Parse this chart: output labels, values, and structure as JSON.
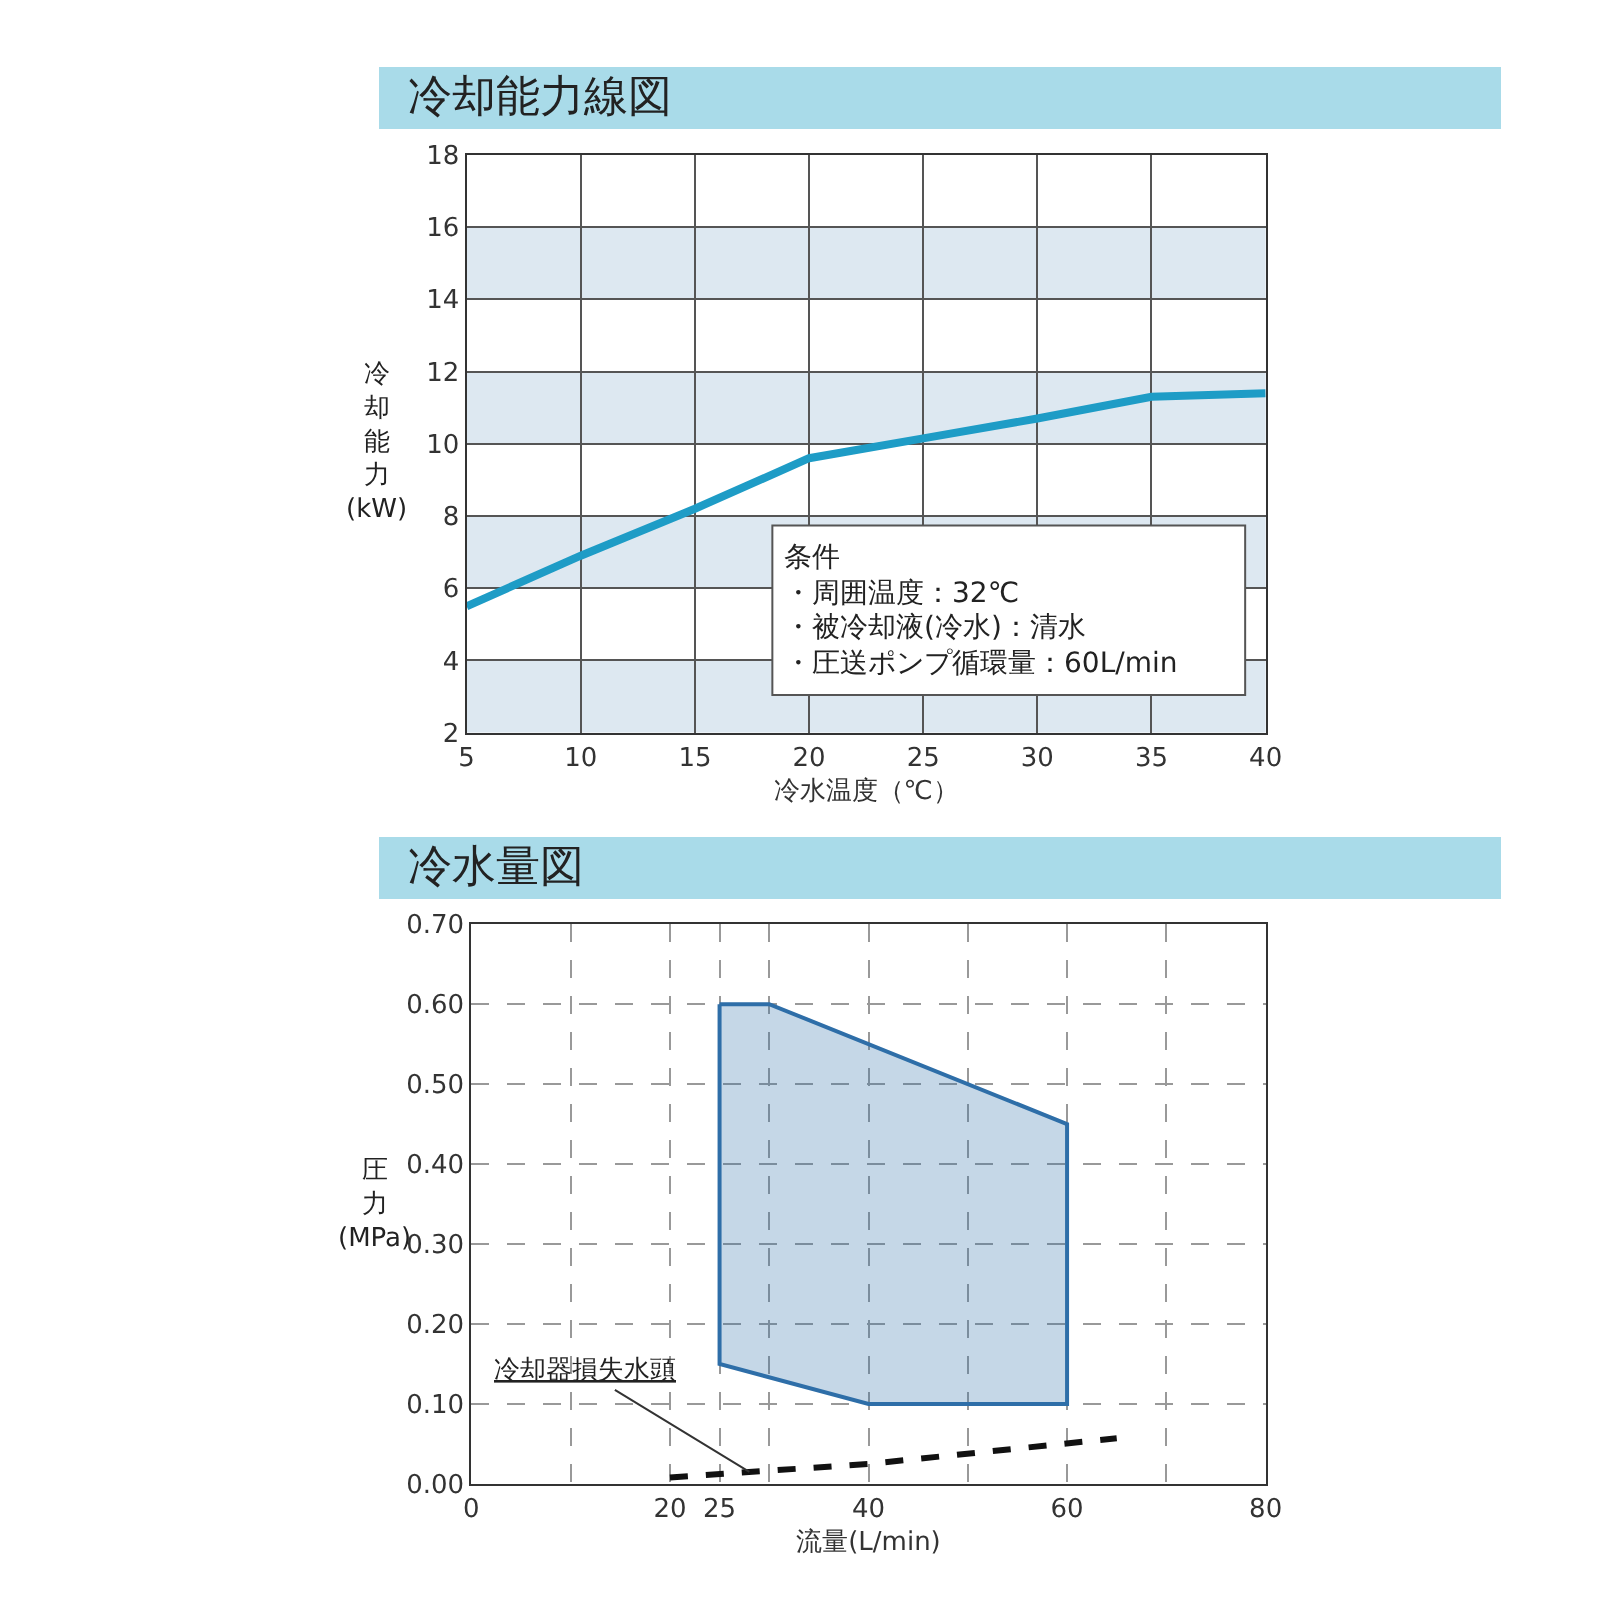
{
  "chart_data": [
    {
      "type": "line",
      "title": "冷却能力線図",
      "xlabel": "冷水温度（℃）",
      "ylabel": "冷却能力\n(kW)",
      "x": [
        5,
        10,
        15,
        20,
        25,
        30,
        35,
        40
      ],
      "series": [
        {
          "color": "#1e9cc6",
          "values": [
            5.5,
            6.9,
            8.2,
            9.6,
            10.15,
            10.7,
            11.3,
            11.4
          ]
        }
      ],
      "xlim": [
        5,
        40
      ],
      "ylim": [
        2,
        18
      ],
      "xticks": [
        5,
        10,
        15,
        20,
        25,
        30,
        35,
        40
      ],
      "yticks": [
        2,
        4,
        6,
        8,
        10,
        12,
        14,
        16,
        18
      ],
      "grid": true,
      "bands": [
        {
          "axis": "y",
          "from": 2,
          "to": 4,
          "color": "#dde8f1"
        },
        {
          "axis": "y",
          "from": 6,
          "to": 8,
          "color": "#dde8f1"
        },
        {
          "axis": "y",
          "from": 10,
          "to": 12,
          "color": "#dde8f1"
        },
        {
          "axis": "y",
          "from": 14,
          "to": 16,
          "color": "#dde8f1"
        }
      ],
      "annotations": [
        "条件",
        "・周囲温度：32℃",
        "・被冷却液(冷水)：清水",
        "・圧送ポンプ循環量：60L/min"
      ]
    },
    {
      "type": "area",
      "title": "冷水量図",
      "xlabel": "流量(L/min)",
      "ylabel": "圧力\n(MPa)",
      "series": [
        {
          "type": "area",
          "color": "#2e6ea8",
          "x": [
            25,
            30,
            60,
            60,
            40,
            25,
            25
          ],
          "values": [
            0.6,
            0.6,
            0.45,
            0.1,
            0.1,
            0.15,
            0.6
          ]
        },
        {
          "type": "line",
          "color": "#111111",
          "line_style": "dashed",
          "x": [
            20,
            40,
            65
          ],
          "values": [
            0.008,
            0.025,
            0.057
          ]
        }
      ],
      "xlim": [
        0,
        80
      ],
      "ylim": [
        0,
        0.7
      ],
      "xticks": [
        0,
        {
          "value": 10,
          "label": null
        },
        20,
        25,
        {
          "value": 30,
          "label": null
        },
        40,
        {
          "value": 50,
          "label": null
        },
        60,
        {
          "value": 70,
          "label": null
        },
        80
      ],
      "yticks": [
        {
          "value": 0,
          "label": "0.00"
        },
        {
          "value": 0.1,
          "label": "0.10"
        },
        {
          "value": 0.2,
          "label": "0.20"
        },
        {
          "value": 0.3,
          "label": "0.30"
        },
        {
          "value": 0.4,
          "label": "0.40"
        },
        {
          "value": 0.5,
          "label": "0.50"
        },
        {
          "value": 0.6,
          "label": "0.60"
        },
        {
          "value": 0.7,
          "label": "0.70"
        }
      ],
      "grid": true,
      "annotations": [
        {
          "text": "冷却器損失水頭",
          "x": 28,
          "y": 0.015
        }
      ]
    }
  ]
}
